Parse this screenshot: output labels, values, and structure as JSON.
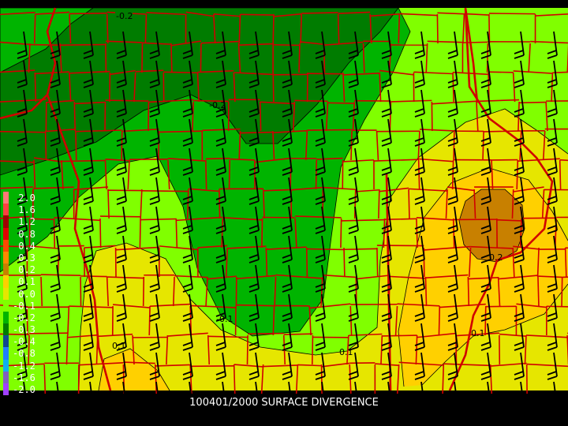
{
  "title": "100401/2000 SURFACE DIVERGENCE",
  "colors": {
    "dark_green": "#007c00",
    "green": "#00b400",
    "light_green": "#80ff00",
    "yellow": "#e6e600",
    "gold": "#ffd000",
    "brown": "#c88000",
    "county_lines": "#d00000"
  },
  "contour_labels": [
    "-0.2",
    "-0.2",
    "-0.1",
    "0.1",
    "0.1",
    "0.1",
    "0.2"
  ],
  "legend": [
    {
      "label": "2.0",
      "color": "#ff7878"
    },
    {
      "label": "1.6",
      "color": "#ff4040"
    },
    {
      "label": "1.2",
      "color": "#a00000"
    },
    {
      "label": "0.8",
      "color": "#e00000"
    },
    {
      "label": "0.4",
      "color": "#ff4800"
    },
    {
      "label": "0.3",
      "color": "#ff8800"
    },
    {
      "label": "0.2",
      "color": "#c88000"
    },
    {
      "label": "0.1",
      "color": "#ffd000"
    },
    {
      "label": "0.0",
      "color": "#e6e600"
    },
    {
      "label": "-0.1",
      "color": "#80ff00"
    },
    {
      "label": "-0.2",
      "color": "#00b400"
    },
    {
      "label": "-0.3",
      "color": "#007c00"
    },
    {
      "label": "-0.4",
      "color": "#104890"
    },
    {
      "label": "-0.8",
      "color": "#2080ff"
    },
    {
      "label": "-1.2",
      "color": "#10b0f0"
    },
    {
      "label": "-1.6",
      "color": "#8060c0"
    },
    {
      "label": "-2.0",
      "color": "#a040ff"
    }
  ]
}
